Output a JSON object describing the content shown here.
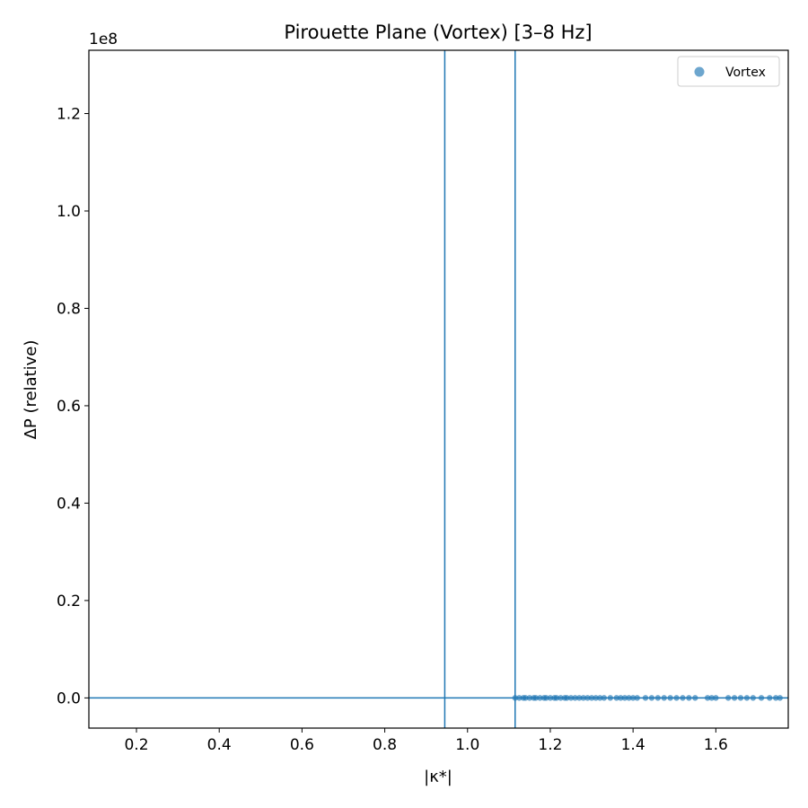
{
  "chart_data": {
    "type": "scatter",
    "title": "Pirouette Plane (Vortex)  [3–8 Hz]",
    "xlabel": "|κ*|",
    "ylabel": "ΔP (relative)",
    "y_offset_label": "1e8",
    "xlim": [
      0.085,
      1.775
    ],
    "ylim": [
      -0.062,
      1.33
    ],
    "x_ticks": [
      0.2,
      0.4,
      0.6,
      0.8,
      1.0,
      1.2,
      1.4,
      1.6
    ],
    "x_tick_labels": [
      "0.2",
      "0.4",
      "0.6",
      "0.8",
      "1.0",
      "1.2",
      "1.4",
      "1.6"
    ],
    "y_ticks": [
      0.0,
      0.2,
      0.4,
      0.6,
      0.8,
      1.0,
      1.2
    ],
    "y_tick_labels": [
      "0.0",
      "0.2",
      "0.4",
      "0.6",
      "0.8",
      "1.0",
      "1.2"
    ],
    "reference_lines": {
      "vertical_x": [
        0.945,
        1.115
      ],
      "horizontal_y": [
        0.0
      ]
    },
    "series_color": "#1f77b4",
    "legend_location": "top-right",
    "series": [
      {
        "name": "Vortex",
        "x": [
          1.115,
          1.125,
          1.135,
          1.14,
          1.15,
          1.16,
          1.165,
          1.175,
          1.185,
          1.19,
          1.2,
          1.21,
          1.215,
          1.225,
          1.235,
          1.24,
          1.25,
          1.26,
          1.27,
          1.28,
          1.29,
          1.3,
          1.31,
          1.32,
          1.33,
          1.345,
          1.36,
          1.37,
          1.38,
          1.39,
          1.4,
          1.41,
          1.43,
          1.445,
          1.46,
          1.475,
          1.49,
          1.505,
          1.52,
          1.535,
          1.55,
          1.58,
          1.59,
          1.6,
          1.63,
          1.645,
          1.66,
          1.675,
          1.69,
          1.71,
          1.73,
          1.745,
          1.755
        ],
        "y": [
          0,
          0,
          0,
          0,
          0,
          0,
          0,
          0,
          0,
          0,
          0,
          0,
          0,
          0,
          0,
          0,
          0,
          0,
          0,
          0,
          0,
          0,
          0,
          0,
          0,
          0,
          0,
          0,
          0,
          0,
          0,
          0,
          0,
          0,
          0,
          0,
          0,
          0,
          0,
          0,
          0,
          0,
          0,
          0,
          0,
          0,
          0,
          0,
          0,
          0,
          0,
          0,
          0
        ]
      }
    ]
  }
}
